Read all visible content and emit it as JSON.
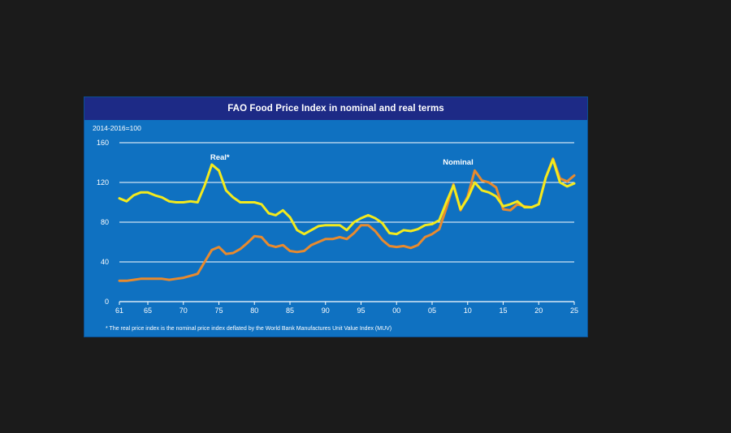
{
  "title": "FAO Food Price Index in nominal and real terms",
  "unit_label": "2014-2016=100",
  "footnote": "* The real price index is the nominal price index deflated by the World Bank Manufactures Unit Value Index (MUV)",
  "colors": {
    "background": "#1b1b1b",
    "panel": "#0f71c1",
    "title_bar": "#1d2a86",
    "real": "#f3ea1d",
    "nominal": "#e88a2e",
    "grid": "#ffffff"
  },
  "chart_data": {
    "type": "line",
    "ylim": [
      0,
      160
    ],
    "yticks": [
      0,
      40,
      80,
      120,
      160
    ],
    "xlim": [
      1961,
      2025
    ],
    "xticks": [
      1961,
      1965,
      1970,
      1975,
      1980,
      1985,
      1990,
      1995,
      2000,
      2005,
      2010,
      2015,
      2020,
      2025
    ],
    "xtick_labels": [
      "61",
      "65",
      "70",
      "75",
      "80",
      "85",
      "90",
      "95",
      "00",
      "05",
      "10",
      "15",
      "20",
      "25"
    ],
    "grid": "horizontal",
    "x": [
      1961,
      1962,
      1963,
      1964,
      1965,
      1966,
      1967,
      1968,
      1969,
      1970,
      1971,
      1972,
      1973,
      1974,
      1975,
      1976,
      1977,
      1978,
      1979,
      1980,
      1981,
      1982,
      1983,
      1984,
      1985,
      1986,
      1987,
      1988,
      1989,
      1990,
      1991,
      1992,
      1993,
      1994,
      1995,
      1996,
      1997,
      1998,
      1999,
      2000,
      2001,
      2002,
      2003,
      2004,
      2005,
      2006,
      2007,
      2008,
      2009,
      2010,
      2011,
      2012,
      2013,
      2014,
      2015,
      2016,
      2017,
      2018,
      2019,
      2020,
      2021,
      2022,
      2023,
      2024,
      2025
    ],
    "series": [
      {
        "name": "Real*",
        "values": [
          104,
          101,
          107,
          110,
          110,
          107,
          105,
          101,
          100,
          100,
          101,
          100,
          117,
          138,
          132,
          112,
          105,
          100,
          100,
          100,
          98,
          89,
          87,
          92,
          85,
          72,
          68,
          72,
          76,
          77,
          77,
          77,
          72,
          80,
          84,
          87,
          84,
          79,
          69,
          68,
          72,
          71,
          73,
          77,
          78,
          82,
          100,
          117,
          93,
          104,
          120,
          112,
          110,
          106,
          96,
          98,
          101,
          95,
          95,
          98,
          125,
          143,
          120,
          116,
          119
        ],
        "label": "Real*"
      },
      {
        "name": "Nominal",
        "values": [
          21,
          21,
          22,
          23,
          23,
          23,
          23,
          22,
          23,
          24,
          26,
          28,
          40,
          52,
          55,
          48,
          49,
          53,
          59,
          66,
          65,
          57,
          55,
          57,
          51,
          50,
          51,
          57,
          60,
          63,
          63,
          65,
          63,
          69,
          77,
          77,
          71,
          62,
          56,
          55,
          56,
          54,
          57,
          65,
          68,
          73,
          94,
          118,
          92,
          106,
          132,
          122,
          120,
          115,
          93,
          92,
          98,
          96,
          95,
          98,
          125,
          144,
          124,
          121,
          127
        ],
        "label": "Nominal"
      }
    ]
  }
}
